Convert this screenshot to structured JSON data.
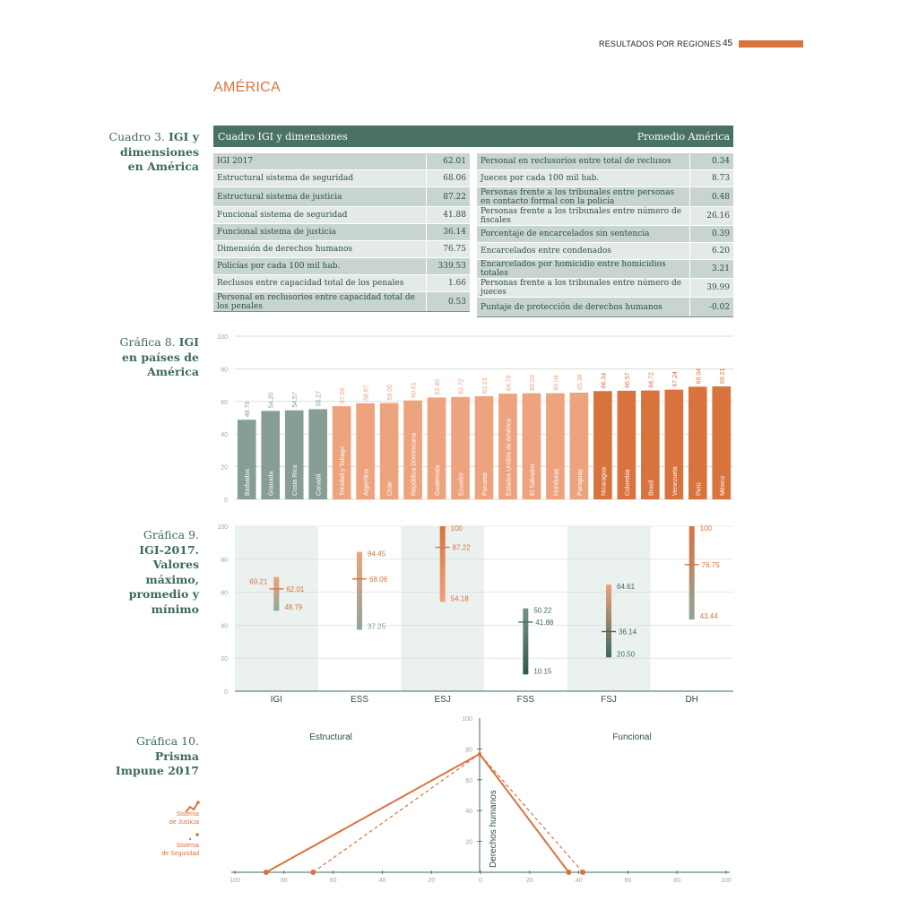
{
  "header": {
    "section": "RESULTADOS POR REGIONES",
    "page": "45"
  },
  "region_title": "AMÉRICA",
  "captions": {
    "c3": {
      "prefix": "Cuadro 3.",
      "title_line1": "IGI y",
      "title_line2": "dimensiones",
      "title_line3": "en América"
    },
    "g8": {
      "prefix": "Gráfica 8.",
      "title_line1": "IGI",
      "title_line2": "en países de",
      "title_line3": "América"
    },
    "g9": {
      "prefix": "Gráfica 9.",
      "title_line1": "IGI-2017.",
      "title_line2": "Valores",
      "title_line3": "máximo,",
      "title_line4": "promedio y",
      "title_line5": "mínimo"
    },
    "g10": {
      "prefix": "Gráfica 10.",
      "title_line1": "Prisma",
      "title_line2": "Impune 2017"
    }
  },
  "table": {
    "title": "Cuadro IGI y dimensiones",
    "right_title": "Promedio América",
    "left": [
      {
        "label": "IGI 2017",
        "value": "62.01"
      },
      {
        "label": "Estructural sistema de seguridad",
        "value": "68.06"
      },
      {
        "label": "Estructural sistema de justicia",
        "value": "87.22"
      },
      {
        "label": "Funcional sistema de seguridad",
        "value": "41.88"
      },
      {
        "label": "Funcional sistema de justicia",
        "value": "36.14"
      },
      {
        "label": "Dimensión de derechos humanos",
        "value": "76.75"
      },
      {
        "label": "Policías por cada 100 mil hab.",
        "value": "339.53"
      },
      {
        "label": "Reclusos entre capacidad total de los penales",
        "value": "1.66"
      },
      {
        "label": "Personal en reclusorios entre capacidad total de los penales",
        "value": "0.53"
      }
    ],
    "right": [
      {
        "label": "Personal en reclusorios entre total de reclusos",
        "value": "0.34"
      },
      {
        "label": "Jueces por cada 100 mil hab.",
        "value": "8.73"
      },
      {
        "label": "Personas frente a los tribunales entre personas en contacto formal con la policía",
        "value": "0.48"
      },
      {
        "label": "Personas frente a los tribunales entre número de fiscales",
        "value": "26.16"
      },
      {
        "label": "Porcentaje de encarcelados sin sentencia",
        "value": "0.39"
      },
      {
        "label": "Encarcelados entre condenados",
        "value": "6.20"
      },
      {
        "label": "Encarcelados por homicidio entre homicidios totales",
        "value": "3.21"
      },
      {
        "label": "Personas frente a los tribunales entre número de jueces",
        "value": "39.99"
      },
      {
        "label": "Puntaje de protección de derechos humanos",
        "value": "-0.02"
      }
    ]
  },
  "chart_data": [
    {
      "type": "bar",
      "title": "IGI en países de América",
      "ylim": [
        0,
        100
      ],
      "yticks": [
        0,
        20,
        40,
        60,
        80,
        100
      ],
      "categories": [
        "Barbados",
        "Granada",
        "Costa Rica",
        "Canadá",
        "Trinidad y Tobago",
        "Argentina",
        "Chile",
        "República Dominicana",
        "Guatemala",
        "Ecuador",
        "Panamá",
        "Estados Unidos de América",
        "El Salvador",
        "Honduras",
        "Paraguay",
        "Nicaragua",
        "Colombia",
        "Brasil",
        "Venezuela",
        "Perú",
        "México"
      ],
      "values": [
        48.79,
        54.2,
        54.57,
        55.27,
        57.08,
        58.87,
        59.05,
        60.61,
        62.4,
        62.72,
        63.23,
        64.78,
        65.03,
        65.04,
        65.38,
        66.34,
        66.57,
        66.72,
        67.24,
        69.04,
        69.21
      ],
      "value_labels": [
        "48.79",
        "54.20",
        "54.57",
        "55.27",
        "57.08",
        "58.87",
        "59.05",
        "60.61",
        "62.40",
        "62.72",
        "63.23",
        "64.78",
        "65.03",
        "65.04",
        "65.38",
        "66.34",
        "66.57",
        "66.72",
        "67.24",
        "69.04",
        "69.21"
      ],
      "groups": [
        "low",
        "low",
        "low",
        "low",
        "mid",
        "mid",
        "mid",
        "mid",
        "mid",
        "mid",
        "mid",
        "mid",
        "mid",
        "mid",
        "mid",
        "high",
        "high",
        "high",
        "high",
        "high",
        "high"
      ],
      "colors": {
        "low": "#869e95",
        "mid": "#eda37d",
        "high": "#d9733e"
      }
    },
    {
      "type": "range",
      "title": "IGI-2017. Valores máximo, promedio y mínimo",
      "ylim": [
        0,
        100
      ],
      "yticks": [
        0,
        20,
        40,
        60,
        80,
        100
      ],
      "categories": [
        "IGI",
        "ESS",
        "ESJ",
        "FSS",
        "FSJ",
        "DH"
      ],
      "max": [
        69.21,
        84.45,
        100,
        50.22,
        64.61,
        100
      ],
      "mean": [
        62.01,
        68.06,
        87.22,
        41.88,
        36.14,
        76.75
      ],
      "min": [
        48.79,
        37.25,
        54.18,
        10.15,
        20.5,
        43.44
      ],
      "max_labels": [
        "69.21",
        "84.45",
        "100",
        "50.22",
        "64.61",
        "100"
      ],
      "mean_labels": [
        "62.01",
        "68.06",
        "87.22",
        "41.88",
        "36.14",
        "76.75"
      ],
      "min_labels": [
        "48.79",
        "37.25",
        "54.18",
        "10.15",
        "20.50",
        "43.44"
      ]
    },
    {
      "type": "line",
      "title": "Prisma Impune 2017",
      "left_label": "Estructural",
      "right_label": "Funcional",
      "axis_label": "Derechos humanos",
      "xticks": [
        "100",
        "80",
        "60",
        "40",
        "20",
        "0",
        "20",
        "40",
        "60",
        "80",
        "100"
      ],
      "yticks": [
        "20",
        "40",
        "60",
        "80",
        "100"
      ],
      "series": [
        {
          "name": "Sistema de Justicia",
          "left": 87.22,
          "top": 76.75,
          "right": 36.14
        },
        {
          "name": "Sistema de Seguridad",
          "left": 68.06,
          "top": 76.75,
          "right": 41.88
        }
      ],
      "legend": [
        {
          "line1": "Sistema",
          "line2": "de Justicia"
        },
        {
          "line1": "Sistema",
          "line2": "de Seguridad"
        }
      ]
    }
  ]
}
